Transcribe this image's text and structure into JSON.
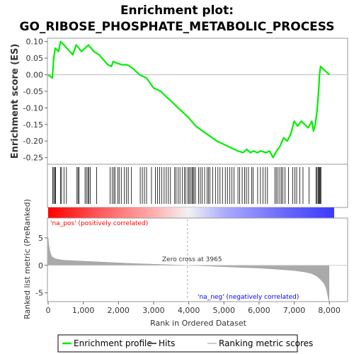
{
  "chart_data": {
    "type": "line",
    "title": "Enrichment plot:",
    "subtitle": "GO_RIBOSE_PHOSPHATE_METABOLIC_PROCESS",
    "colors": {
      "enrichment": "#00ee00",
      "hits": "#000000",
      "metric_fill": "#aaaaaa",
      "zero_line": "#bbbbbb",
      "pos_label": "#ff0000",
      "neg_label": "#0000ff"
    },
    "top_panel": {
      "ylabel": "Enrichment score (ES)",
      "ylim": [
        -0.27,
        0.11
      ],
      "yticks": [
        0.1,
        0.05,
        0.0,
        -0.05,
        -0.1,
        -0.15,
        -0.2,
        -0.25
      ],
      "ytick_labels": [
        "0.10",
        "0.05",
        "0.00",
        "-0.05",
        "-0.10",
        "-0.15",
        "-0.20",
        "-0.25"
      ],
      "grid": false,
      "series": [
        {
          "name": "Enrichment profile",
          "x": [
            0,
            120,
            160,
            200,
            300,
            350,
            450,
            700,
            800,
            950,
            1050,
            1150,
            1300,
            1450,
            1700,
            1800,
            1850,
            1950,
            2100,
            2250,
            2400,
            2600,
            2800,
            3000,
            3200,
            3400,
            3600,
            3800,
            4000,
            4200,
            4400,
            4600,
            4800,
            5000,
            5200,
            5400,
            5550,
            5650,
            5750,
            5850,
            5950,
            6050,
            6200,
            6300,
            6400,
            6500,
            6600,
            6700,
            6800,
            6900,
            7000,
            7100,
            7200,
            7300,
            7400,
            7500,
            7550,
            7600,
            7650,
            7680,
            7700,
            7720,
            7750,
            7800,
            7900,
            8000
          ],
          "values": [
            0.0,
            -0.01,
            0.05,
            0.08,
            0.07,
            0.1,
            0.09,
            0.06,
            0.09,
            0.07,
            0.08,
            0.09,
            0.07,
            0.06,
            0.03,
            0.025,
            0.04,
            0.035,
            0.03,
            0.03,
            0.02,
            0.0,
            -0.01,
            -0.04,
            -0.05,
            -0.07,
            -0.09,
            -0.11,
            -0.13,
            -0.155,
            -0.17,
            -0.185,
            -0.2,
            -0.21,
            -0.22,
            -0.23,
            -0.235,
            -0.225,
            -0.235,
            -0.23,
            -0.235,
            -0.23,
            -0.235,
            -0.23,
            -0.25,
            -0.23,
            -0.215,
            -0.19,
            -0.2,
            -0.18,
            -0.14,
            -0.155,
            -0.14,
            -0.15,
            -0.16,
            -0.14,
            -0.17,
            -0.15,
            -0.11,
            -0.07,
            -0.04,
            0.0,
            0.025,
            0.02,
            0.01,
            0.0
          ]
        }
      ]
    },
    "hits_panel": {
      "name": "Hits",
      "positions": [
        130,
        160,
        190,
        210,
        350,
        380,
        450,
        520,
        820,
        850,
        880,
        1050,
        1090,
        1130,
        1160,
        1200,
        1380,
        1760,
        1820,
        1870,
        1900,
        1980,
        2020,
        2080,
        2170,
        2230,
        2280,
        2370,
        2620,
        2680,
        2740,
        2800,
        2940,
        3050,
        3110,
        3170,
        3230,
        3300,
        3360,
        3420,
        3480,
        3600,
        3640,
        3700,
        3750,
        3820,
        3880,
        3920,
        3980,
        4010,
        4050,
        4090,
        4120,
        4150,
        4190,
        4280,
        4330,
        4380,
        4450,
        4520,
        4560,
        4600,
        4680,
        4760,
        4830,
        4890,
        4960,
        5040,
        5100,
        5170,
        5230,
        5290,
        5400,
        5450,
        5520,
        5590,
        5640,
        5700,
        5790,
        5830,
        5960,
        6040,
        6110,
        6180,
        6240,
        6450,
        6490,
        6540,
        6590,
        6640,
        6680,
        6740,
        6840,
        6960,
        7020,
        7070,
        7160,
        7250,
        7420,
        7620,
        7650,
        7680,
        7700,
        7720,
        7740,
        7760
      ]
    },
    "metric_panel": {
      "ylabel": "Ranked list metric (PreRanked)",
      "xlabel": "Rank in Ordered Dataset",
      "ylim": [
        -6.6,
        8.6
      ],
      "yticks": [
        5,
        0,
        -5
      ],
      "ytick_labels": [
        "5",
        "0",
        "-5"
      ],
      "xlim": [
        0,
        8500
      ],
      "xticks": [
        0,
        1000,
        2000,
        3000,
        4000,
        5000,
        6000,
        7000,
        8000
      ],
      "xtick_labels": [
        "0",
        "1,000",
        "2,000",
        "3,000",
        "4,000",
        "5,000",
        "6,000",
        "7,000",
        "8,000"
      ],
      "metric_x": [
        0,
        20,
        50,
        100,
        200,
        400,
        700,
        1000,
        1500,
        2000,
        2500,
        3000,
        3500,
        3965,
        4500,
        5000,
        5500,
        6000,
        6500,
        7000,
        7300,
        7500,
        7650,
        7750,
        7850,
        7900,
        7940,
        7970,
        7990
      ],
      "metric_values": [
        5.0,
        3.6,
        2.5,
        1.6,
        1.2,
        0.95,
        0.85,
        0.75,
        0.6,
        0.45,
        0.3,
        0.2,
        0.1,
        0.0,
        -0.12,
        -0.25,
        -0.38,
        -0.5,
        -0.7,
        -0.95,
        -1.2,
        -1.5,
        -2.0,
        -2.6,
        -3.3,
        -4.0,
        -5.0,
        -6.0,
        -6.5
      ],
      "zero_cross": 3965,
      "zero_cross_label": "Zero cross at 3965",
      "pos_label": "'na_pos' (positively correlated)",
      "neg_label": "'na_neg' (negatively correlated)"
    },
    "legend": {
      "placement": "bottom",
      "items": [
        {
          "label": "Enrichment profile"
        },
        {
          "label": "Hits"
        },
        {
          "label": "Ranking metric scores"
        }
      ]
    }
  }
}
